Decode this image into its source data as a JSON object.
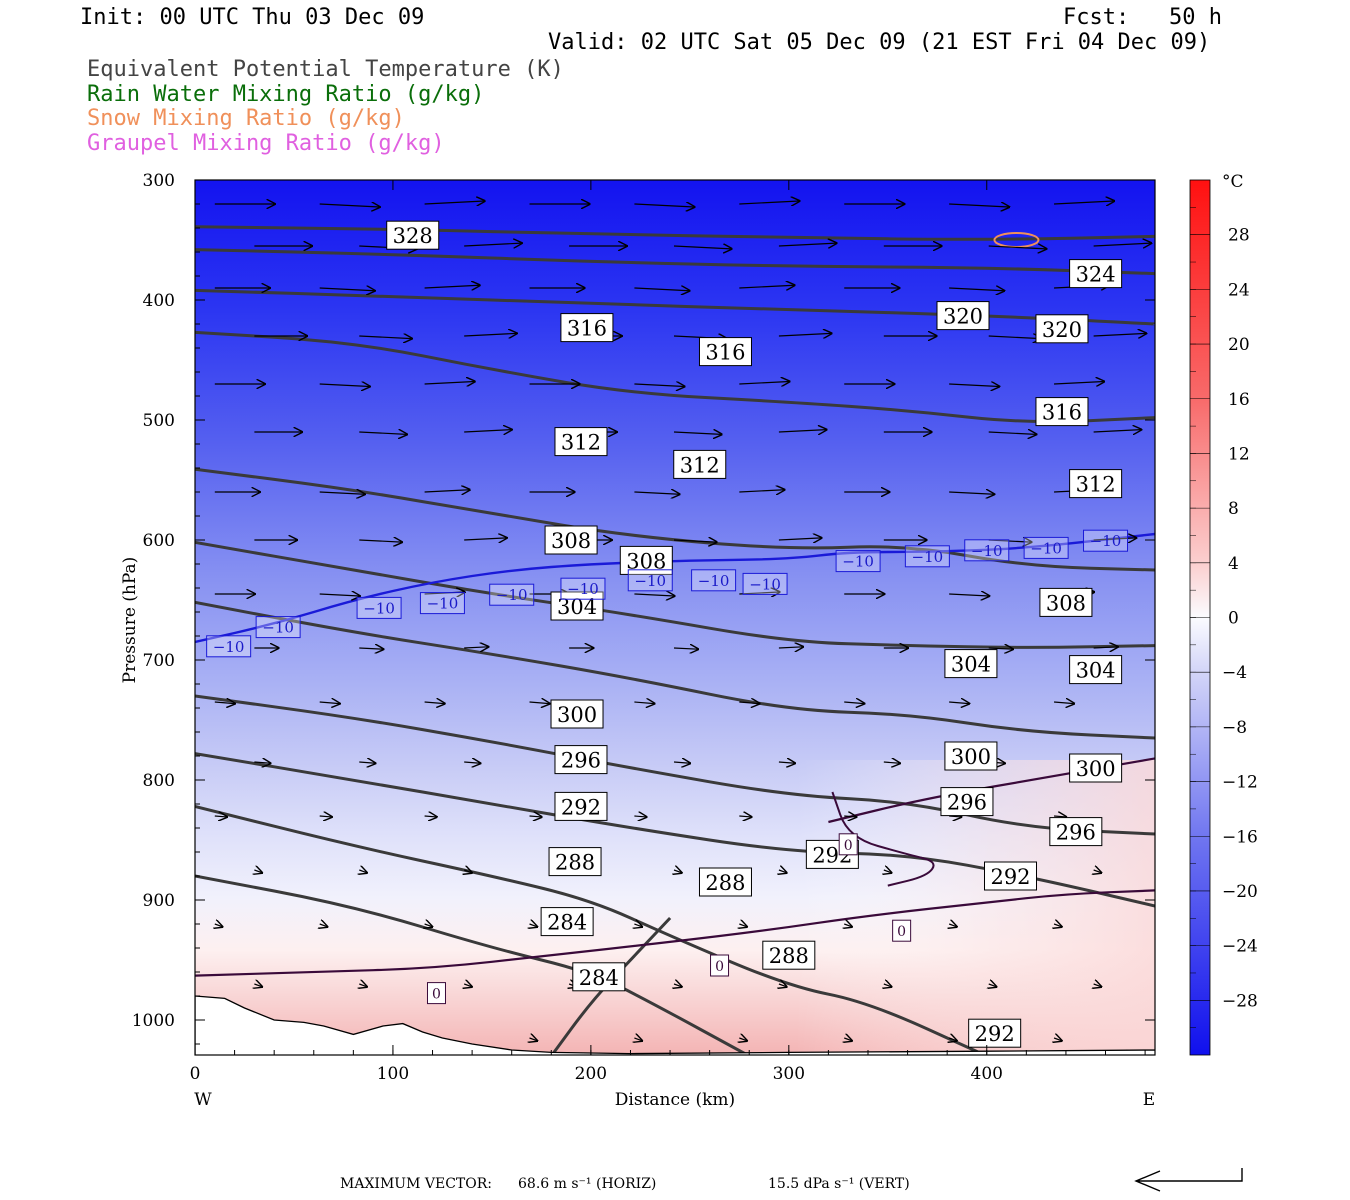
{
  "header": {
    "init": "Init: 00 UTC Thu 03 Dec 09",
    "fcst": "Fcst:   50 h",
    "valid": "Valid: 02 UTC Sat 05 Dec 09 (21 EST Fri 04 Dec 09)"
  },
  "legend": [
    {
      "text": "Equivalent Potential Temperature (K)",
      "color": "#444444"
    },
    {
      "text": "Rain Water Mixing Ratio (g/kg)",
      "color": "#0a6e0a"
    },
    {
      "text": "Snow Mixing Ratio (g/kg)",
      "color": "#f0905a"
    },
    {
      "text": "Graupel Mixing Ratio (g/kg)",
      "color": "#e060e0"
    }
  ],
  "chart_data": {
    "type": "cross-section",
    "xlabel": "Distance (km)",
    "ylabel": "Pressure (hPa)",
    "x_range": [
      0,
      485
    ],
    "y_range": [
      300,
      1030
    ],
    "x_ticks": [
      0,
      100,
      200,
      300,
      400
    ],
    "y_ticks": [
      300,
      400,
      500,
      600,
      700,
      800,
      900,
      1000
    ],
    "x_end_labels": {
      "left": "W",
      "right": "E"
    },
    "colorbar": {
      "unit": "°C",
      "ticks": [
        28,
        24,
        20,
        16,
        12,
        8,
        4,
        0,
        -4,
        -8,
        -12,
        -16,
        -20,
        -24,
        -28
      ],
      "range": [
        -32,
        32
      ]
    },
    "theta_e_contours": [
      {
        "value": 328,
        "points": [
          [
            0,
            339
          ],
          [
            100,
            341
          ],
          [
            200,
            345
          ],
          [
            300,
            348
          ],
          [
            400,
            350
          ],
          [
            485,
            347
          ]
        ]
      },
      {
        "value": 324,
        "points": [
          [
            0,
            358
          ],
          [
            100,
            362
          ],
          [
            200,
            368
          ],
          [
            300,
            372
          ],
          [
            400,
            373
          ],
          [
            485,
            378
          ]
        ]
      },
      {
        "value": 320,
        "points": [
          [
            0,
            392
          ],
          [
            100,
            397
          ],
          [
            200,
            403
          ],
          [
            300,
            408
          ],
          [
            400,
            413
          ],
          [
            485,
            420
          ]
        ]
      },
      {
        "value": 316,
        "points": [
          [
            0,
            427
          ],
          [
            80,
            435
          ],
          [
            150,
            458
          ],
          [
            220,
            478
          ],
          [
            300,
            485
          ],
          [
            360,
            492
          ],
          [
            420,
            503
          ],
          [
            485,
            498
          ]
        ]
      },
      {
        "value": 312,
        "points": [
          [
            0,
            541
          ],
          [
            80,
            558
          ],
          [
            150,
            578
          ],
          [
            220,
            597
          ],
          [
            300,
            608
          ],
          [
            360,
            604
          ],
          [
            420,
            622
          ],
          [
            485,
            625
          ]
        ]
      },
      {
        "value": 308,
        "points": [
          [
            0,
            602
          ],
          [
            80,
            625
          ],
          [
            150,
            645
          ],
          [
            220,
            662
          ],
          [
            300,
            685
          ],
          [
            360,
            688
          ],
          [
            420,
            690
          ],
          [
            485,
            688
          ]
        ]
      },
      {
        "value": 304,
        "points": [
          [
            0,
            652
          ],
          [
            80,
            677
          ],
          [
            150,
            695
          ],
          [
            220,
            715
          ],
          [
            300,
            742
          ],
          [
            360,
            745
          ],
          [
            420,
            760
          ],
          [
            485,
            765
          ]
        ]
      },
      {
        "value": 300,
        "points": [
          [
            0,
            730
          ],
          [
            80,
            748
          ],
          [
            150,
            768
          ],
          [
            220,
            790
          ],
          [
            300,
            813
          ],
          [
            360,
            818
          ],
          [
            420,
            840
          ],
          [
            485,
            845
          ]
        ]
      },
      {
        "value": 296,
        "points": [
          [
            0,
            778
          ],
          [
            80,
            800
          ],
          [
            150,
            820
          ],
          [
            220,
            840
          ],
          [
            300,
            860
          ],
          [
            360,
            862
          ],
          [
            420,
            880
          ],
          [
            485,
            905
          ]
        ]
      },
      {
        "value": 292,
        "points": [
          [
            0,
            822
          ],
          [
            80,
            855
          ],
          [
            150,
            880
          ],
          [
            200,
            900
          ],
          [
            240,
            930
          ],
          [
            300,
            972
          ],
          [
            340,
            985
          ],
          [
            400,
            1030
          ]
        ]
      },
      {
        "value": 288,
        "points": [
          [
            0,
            880
          ],
          [
            80,
            905
          ],
          [
            150,
            940
          ],
          [
            200,
            960
          ],
          [
            230,
            985
          ],
          [
            280,
            1030
          ]
        ]
      },
      {
        "value": 284,
        "points": [
          [
            180,
            1030
          ],
          [
            200,
            985
          ],
          [
            220,
            950
          ],
          [
            240,
            915
          ]
        ]
      }
    ],
    "theta_e_labels": [
      {
        "value": "328",
        "x": 110,
        "p": 346
      },
      {
        "value": "324",
        "x": 455,
        "p": 378
      },
      {
        "value": "320",
        "x": 388,
        "p": 413
      },
      {
        "value": "320",
        "x": 438,
        "p": 424
      },
      {
        "value": "316",
        "x": 198,
        "p": 423
      },
      {
        "value": "316",
        "x": 268,
        "p": 443
      },
      {
        "value": "316",
        "x": 438,
        "p": 493
      },
      {
        "value": "312",
        "x": 195,
        "p": 518
      },
      {
        "value": "312",
        "x": 255,
        "p": 537
      },
      {
        "value": "312",
        "x": 455,
        "p": 553
      },
      {
        "value": "308",
        "x": 190,
        "p": 600
      },
      {
        "value": "308",
        "x": 228,
        "p": 617
      },
      {
        "value": "308",
        "x": 440,
        "p": 652
      },
      {
        "value": "304",
        "x": 193,
        "p": 655
      },
      {
        "value": "304",
        "x": 392,
        "p": 703
      },
      {
        "value": "304",
        "x": 455,
        "p": 708
      },
      {
        "value": "300",
        "x": 193,
        "p": 745
      },
      {
        "value": "300",
        "x": 392,
        "p": 780
      },
      {
        "value": "300",
        "x": 455,
        "p": 790
      },
      {
        "value": "296",
        "x": 195,
        "p": 783
      },
      {
        "value": "296",
        "x": 390,
        "p": 818
      },
      {
        "value": "296",
        "x": 445,
        "p": 843
      },
      {
        "value": "292",
        "x": 195,
        "p": 822
      },
      {
        "value": "292",
        "x": 322,
        "p": 862
      },
      {
        "value": "292",
        "x": 412,
        "p": 880
      },
      {
        "value": "292",
        "x": 404,
        "p": 1011
      },
      {
        "value": "288",
        "x": 192,
        "p": 868
      },
      {
        "value": "288",
        "x": 268,
        "p": 885
      },
      {
        "value": "288",
        "x": 300,
        "p": 946
      },
      {
        "value": "284",
        "x": 188,
        "p": 918
      },
      {
        "value": "284",
        "x": 204,
        "p": 964
      }
    ],
    "isotherm_neg10": {
      "value": "−10",
      "points": [
        [
          0,
          685
        ],
        [
          40,
          670
        ],
        [
          80,
          650
        ],
        [
          120,
          635
        ],
        [
          160,
          625
        ],
        [
          200,
          620
        ],
        [
          250,
          617
        ],
        [
          300,
          616
        ],
        [
          330,
          610
        ],
        [
          370,
          610
        ],
        [
          420,
          607
        ],
        [
          485,
          595
        ]
      ],
      "label_positions": [
        [
          17,
          689
        ],
        [
          42,
          673
        ],
        [
          93,
          657
        ],
        [
          125,
          653
        ],
        [
          160,
          646
        ],
        [
          196,
          641
        ],
        [
          230,
          634
        ],
        [
          262,
          634
        ],
        [
          288,
          637
        ],
        [
          335,
          618
        ],
        [
          370,
          614
        ],
        [
          400,
          609
        ],
        [
          430,
          607
        ],
        [
          460,
          601
        ]
      ]
    },
    "isotherm_zero": {
      "value": "0",
      "label_positions": [
        [
          122,
          978
        ],
        [
          265,
          955
        ],
        [
          357,
          926
        ],
        [
          330,
          854
        ]
      ]
    },
    "snow_mixing_ratio": {
      "blob_center": [
        415,
        350
      ],
      "color": "#f0905a"
    },
    "footer": {
      "prefix": "MAXIMUM VECTOR:",
      "horiz": "68.6 m s⁻¹ (HORIZ)",
      "vert": "15.5 dPa s⁻¹ (VERT)"
    }
  }
}
